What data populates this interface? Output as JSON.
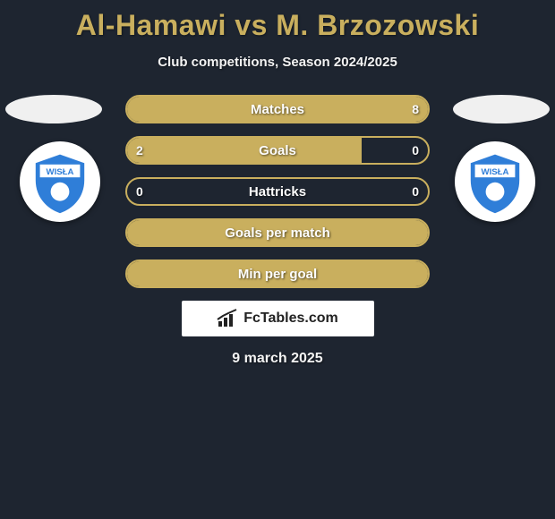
{
  "title": "Al-Hamawi vs M. Brzozowski",
  "subtitle": "Club competitions, Season 2024/2025",
  "date": "9 march 2025",
  "brand_text": "FcTables.com",
  "colors": {
    "accent": "#c9af5e",
    "background": "#1e2530",
    "text": "#ffffff",
    "badge_blue": "#2f7ed8",
    "badge_white": "#ffffff"
  },
  "rows": [
    {
      "label": "Matches",
      "left": "",
      "right": "8",
      "fill_left_pct": 0,
      "fill_right_pct": 100
    },
    {
      "label": "Goals",
      "left": "2",
      "right": "0",
      "fill_left_pct": 78,
      "fill_right_pct": 0
    },
    {
      "label": "Hattricks",
      "left": "0",
      "right": "0",
      "fill_left_pct": 0,
      "fill_right_pct": 0
    },
    {
      "label": "Goals per match",
      "left": "",
      "right": "",
      "fill_left_pct": 100,
      "fill_right_pct": 0
    },
    {
      "label": "Min per goal",
      "left": "",
      "right": "",
      "fill_left_pct": 100,
      "fill_right_pct": 0
    }
  ],
  "club_badge_text": "WISŁA"
}
